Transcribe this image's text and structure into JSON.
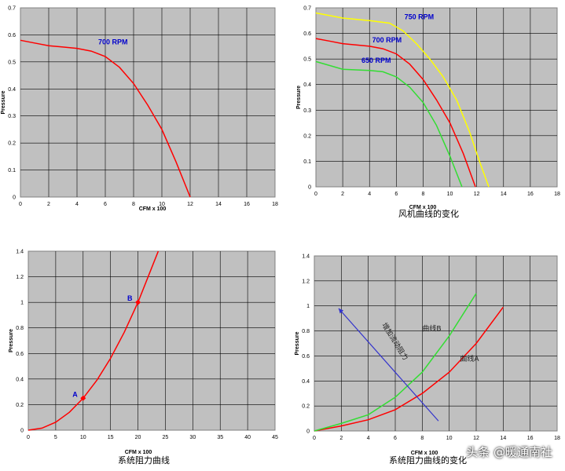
{
  "chart_data": [
    {
      "type": "line",
      "xlabel": "CFM x 100",
      "ylabel": "Pressure",
      "caption": "",
      "xlim": [
        0,
        18
      ],
      "ylim": [
        0,
        0.7
      ],
      "xticks": [
        "0",
        "2",
        "4",
        "6",
        "8",
        "10",
        "12",
        "14",
        "16",
        "18"
      ],
      "yticks": [
        "0",
        "0.1",
        "0.2",
        "0.3",
        "0.4",
        "0.5",
        "0.6",
        "0.7"
      ],
      "grid": true,
      "series": [
        {
          "name": "700 RPM",
          "color": "#ff0000",
          "x": [
            0,
            1,
            2,
            3,
            4,
            5,
            6,
            7,
            8,
            9,
            10,
            11,
            12
          ],
          "y": [
            0.58,
            0.57,
            0.56,
            0.555,
            0.55,
            0.54,
            0.52,
            0.48,
            0.42,
            0.34,
            0.25,
            0.13,
            0
          ]
        }
      ],
      "annotations": [
        {
          "text": "700 RPM",
          "x": 5.5,
          "y": 0.565,
          "color": "#0000cc"
        }
      ]
    },
    {
      "type": "line",
      "xlabel": "CFM x 100",
      "ylabel": "Pressure",
      "caption": "风机曲线的变化",
      "xlim": [
        0,
        18
      ],
      "ylim": [
        0,
        0.7
      ],
      "xticks": [
        "0",
        "2",
        "4",
        "6",
        "8",
        "10",
        "12",
        "14",
        "16",
        "18"
      ],
      "yticks": [
        "0",
        "0.1",
        "0.2",
        "0.3",
        "0.4",
        "0.5",
        "0.6",
        "0.7"
      ],
      "grid": true,
      "series": [
        {
          "name": "750 RPM",
          "color": "#ffff00",
          "x": [
            0,
            2,
            4,
            5.5,
            6.5,
            7.5,
            8.5,
            9.5,
            10.5,
            11.5,
            12.2,
            12.9
          ],
          "y": [
            0.68,
            0.66,
            0.65,
            0.64,
            0.61,
            0.56,
            0.5,
            0.43,
            0.34,
            0.21,
            0.1,
            0
          ]
        },
        {
          "name": "700 RPM",
          "color": "#ff0000",
          "x": [
            0,
            1,
            2,
            3,
            4,
            5,
            6,
            7,
            8,
            9,
            10,
            11,
            11.9
          ],
          "y": [
            0.58,
            0.57,
            0.56,
            0.555,
            0.55,
            0.54,
            0.52,
            0.48,
            0.42,
            0.34,
            0.25,
            0.13,
            0
          ]
        },
        {
          "name": "650 RPM",
          "color": "#33dd33",
          "x": [
            0,
            2,
            4,
            5,
            6,
            7,
            8,
            9,
            10,
            10.9
          ],
          "y": [
            0.49,
            0.46,
            0.455,
            0.45,
            0.43,
            0.39,
            0.33,
            0.24,
            0.12,
            0
          ]
        }
      ],
      "annotations": [
        {
          "text": "750 RPM",
          "x": 6.6,
          "y": 0.655,
          "color": "#0000cc"
        },
        {
          "text": "700 RPM",
          "x": 4.2,
          "y": 0.565,
          "color": "#0000cc"
        },
        {
          "text": "650 RPM",
          "x": 3.4,
          "y": 0.485,
          "color": "#0000cc"
        }
      ]
    },
    {
      "type": "line",
      "xlabel": "CFM x 100",
      "ylabel": "Pressure",
      "caption": "系统阻力曲线",
      "xlim": [
        0,
        45
      ],
      "ylim": [
        0,
        1.4
      ],
      "xticks": [
        "0",
        "5",
        "10",
        "15",
        "20",
        "25",
        "30",
        "35",
        "40",
        "45"
      ],
      "yticks": [
        "0",
        "0.2",
        "0.4",
        "0.6",
        "0.8",
        "1",
        "1.2",
        "1.4"
      ],
      "grid": true,
      "series": [
        {
          "name": "",
          "color": "#ff0000",
          "x": [
            0,
            2.5,
            5,
            7.5,
            10,
            12.5,
            15,
            17.5,
            20,
            22.5,
            23.7
          ],
          "y": [
            0,
            0.016,
            0.0625,
            0.14,
            0.25,
            0.39,
            0.5625,
            0.766,
            1.0,
            1.27,
            1.4
          ]
        }
      ],
      "points": [
        {
          "label": "A",
          "x": 10,
          "y": 0.25,
          "color": "#ff0000"
        },
        {
          "label": "B",
          "x": 20,
          "y": 1.0,
          "color": "#ff0000"
        }
      ]
    },
    {
      "type": "line",
      "xlabel": "CFM x 100",
      "ylabel": "Pressure",
      "caption": "系统阻力曲线的变化",
      "xlim": [
        0,
        18
      ],
      "ylim": [
        0,
        1.4
      ],
      "xticks": [
        "0",
        "2",
        "4",
        "6",
        "8",
        "10",
        "12",
        "14",
        "16",
        "18"
      ],
      "yticks": [
        "0",
        "0.2",
        "0.4",
        "0.6",
        "0.8",
        "1",
        "1.2",
        "1.4"
      ],
      "grid": true,
      "series": [
        {
          "name": "曲线A",
          "color": "#ff0000",
          "x": [
            0,
            2,
            4,
            6,
            8,
            10,
            12,
            14
          ],
          "y": [
            0,
            0.04,
            0.09,
            0.17,
            0.3,
            0.47,
            0.7,
            0.99
          ]
        },
        {
          "name": "曲线B",
          "color": "#33dd33",
          "x": [
            0,
            2,
            4,
            6,
            8,
            10,
            12
          ],
          "y": [
            0,
            0.06,
            0.13,
            0.27,
            0.47,
            0.76,
            1.1
          ]
        }
      ],
      "annotations": [
        {
          "text": "曲线B",
          "x": 8.0,
          "y": 0.8,
          "color": "#333333"
        },
        {
          "text": "曲线A",
          "x": 10.8,
          "y": 0.56,
          "color": "#333333"
        },
        {
          "text": "增加流动阻力",
          "x": 5.0,
          "y": 0.85,
          "color": "#333333",
          "rotate": 58
        }
      ],
      "arrow": {
        "from": [
          9.2,
          0.08
        ],
        "to": [
          1.8,
          0.98
        ],
        "color": "#3333cc"
      }
    }
  ],
  "watermark": "头条 @暖通南社"
}
